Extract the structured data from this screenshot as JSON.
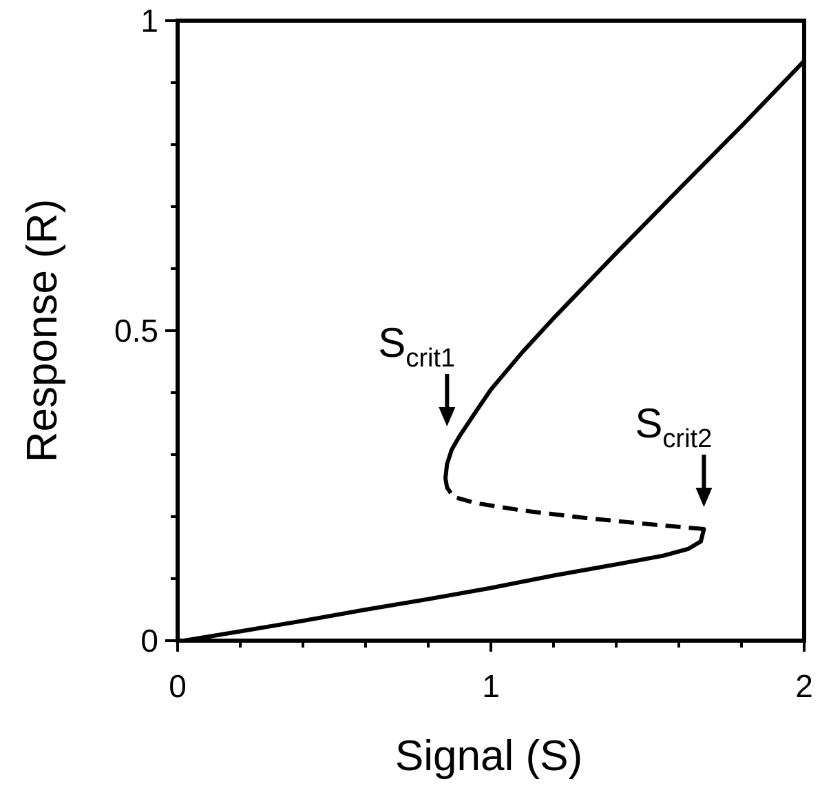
{
  "chart_data": {
    "type": "line",
    "title": "",
    "xlabel": "Signal (S)",
    "ylabel": "Response (R)",
    "xlim": [
      0,
      2
    ],
    "ylim": [
      0,
      1
    ],
    "x_ticks": [
      {
        "value": 0,
        "label": "0"
      },
      {
        "value": 1,
        "label": "1"
      },
      {
        "value": 2,
        "label": "2"
      }
    ],
    "x_minor_tick_step": 0.2,
    "y_ticks": [
      {
        "value": 0,
        "label": "0"
      },
      {
        "value": 0.5,
        "label": "0.5"
      },
      {
        "value": 1,
        "label": "1"
      }
    ],
    "y_minor_tick_step": 0.1,
    "grid": false,
    "series": [
      {
        "style": "solid",
        "points": [
          [
            0.02,
            0.0
          ],
          [
            0.2,
            0.015
          ],
          [
            0.4,
            0.032
          ],
          [
            0.6,
            0.05
          ],
          [
            0.8,
            0.067
          ],
          [
            1.0,
            0.085
          ],
          [
            1.2,
            0.105
          ],
          [
            1.4,
            0.123
          ],
          [
            1.55,
            0.137
          ],
          [
            1.63,
            0.148
          ],
          [
            1.67,
            0.16
          ],
          [
            1.68,
            0.18
          ]
        ]
      },
      {
        "style": "dashed",
        "points": [
          [
            1.68,
            0.18
          ],
          [
            1.5,
            0.188
          ],
          [
            1.3,
            0.198
          ],
          [
            1.1,
            0.21
          ],
          [
            0.95,
            0.222
          ],
          [
            0.88,
            0.232
          ],
          [
            0.86,
            0.247
          ],
          [
            0.855,
            0.262
          ]
        ]
      },
      {
        "style": "solid",
        "points": [
          [
            0.855,
            0.262
          ],
          [
            0.86,
            0.285
          ],
          [
            0.875,
            0.308
          ],
          [
            0.9,
            0.33
          ],
          [
            0.95,
            0.368
          ],
          [
            1.0,
            0.405
          ],
          [
            1.1,
            0.465
          ],
          [
            1.2,
            0.52
          ],
          [
            1.4,
            0.625
          ],
          [
            1.6,
            0.728
          ],
          [
            1.8,
            0.83
          ],
          [
            2.0,
            0.935
          ]
        ]
      }
    ],
    "annotations": [
      {
        "main": "S",
        "sub": "crit1",
        "at": [
          0.86,
          0.33
        ]
      },
      {
        "main": "S",
        "sub": "crit2",
        "at": [
          1.68,
          0.2
        ]
      }
    ]
  }
}
